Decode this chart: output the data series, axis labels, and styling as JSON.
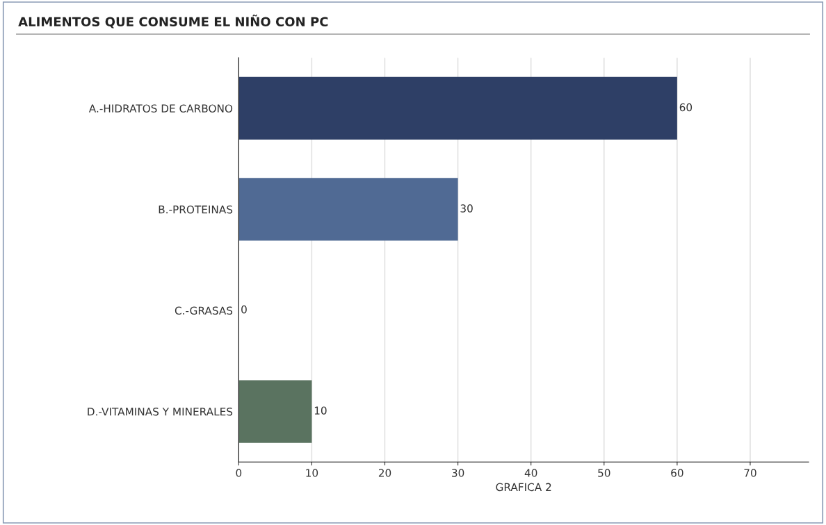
{
  "chart_data": {
    "type": "bar",
    "orientation": "horizontal",
    "title": "ALIMENTOS QUE CONSUME EL NIÑO CON PC",
    "xlabel": "GRAFICA 2",
    "categories": [
      "A.-HIDRATOS DE CARBONO",
      "B.-PROTEINAS",
      "C.-GRASAS",
      "D.-VITAMINAS Y MINERALES"
    ],
    "values": [
      60,
      30,
      0,
      10
    ],
    "colors": [
      "#2e3f66",
      "#506a94",
      "#7a8a9c",
      "#5a7360"
    ],
    "xlim": [
      0,
      78
    ],
    "xticks": [
      0,
      10,
      20,
      30,
      40,
      50,
      60,
      70
    ],
    "grid": "x",
    "data_labels": true,
    "legend": false
  }
}
